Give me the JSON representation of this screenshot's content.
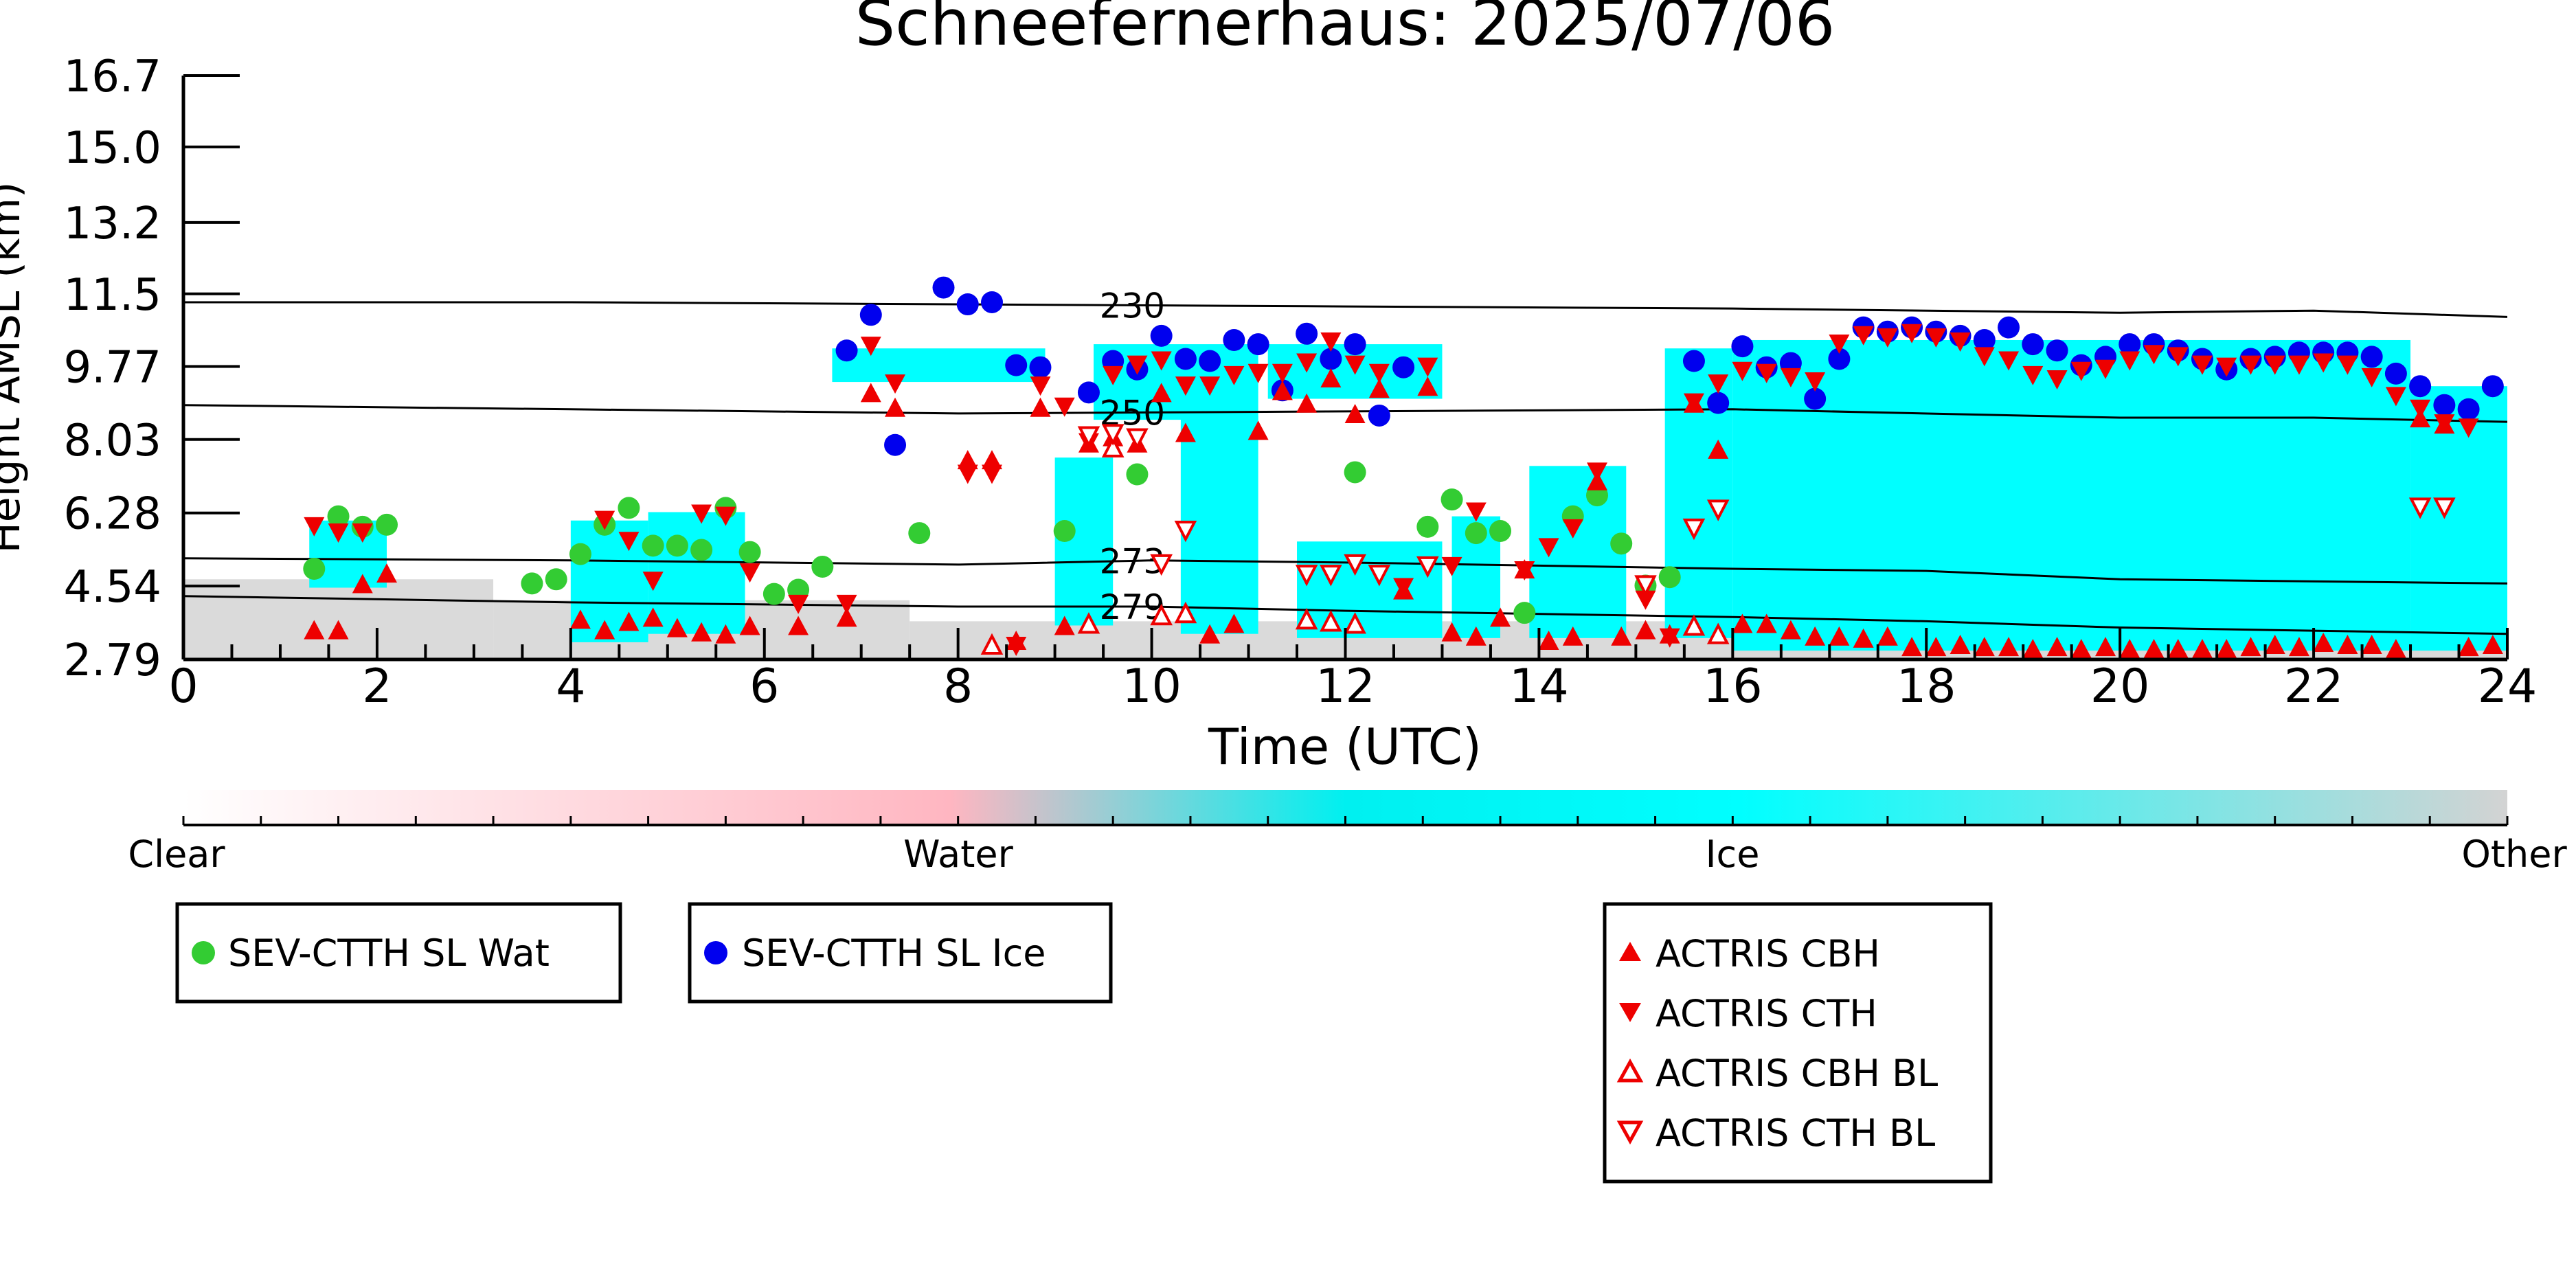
{
  "chart_data": {
    "type": "scatter",
    "title": "Schneefernerhaus: 2025/07/06",
    "xlabel": "Time (UTC)",
    "ylabel": "Height AMSL (km)",
    "xlim": [
      0,
      24
    ],
    "ylim": [
      2.79,
      16.7
    ],
    "x_ticks": [
      "0",
      "2",
      "4",
      "6",
      "8",
      "10",
      "12",
      "14",
      "16",
      "18",
      "20",
      "22",
      "24"
    ],
    "y_ticks": [
      "2.79",
      "4.54",
      "6.28",
      "8.03",
      "9.77",
      "11.5",
      "13.2",
      "15.0",
      "16.7"
    ],
    "colorbar": {
      "labels": [
        "Clear",
        "Water",
        "Ice",
        "Other"
      ],
      "colors": [
        "#ffffff",
        "#ffb6c1",
        "#00ffff",
        "#d3d3d3"
      ]
    },
    "colors": {
      "wat": "#33cc33",
      "ice": "#0000ee",
      "actris": "#ee0000",
      "cloud_ice": "#00ffff",
      "cloud_other": "#d3d3d3",
      "cloud_water": "#ffb6c1"
    },
    "isotherms": [
      {
        "label": "230",
        "x": [
          0,
          4,
          8,
          12,
          16,
          20,
          22,
          24
        ],
        "y": [
          11.3,
          11.3,
          11.25,
          11.2,
          11.15,
          11.05,
          11.1,
          10.95
        ]
      },
      {
        "label": "250",
        "x": [
          0,
          4,
          8,
          12,
          16,
          20,
          22,
          24
        ],
        "y": [
          8.85,
          8.75,
          8.65,
          8.7,
          8.75,
          8.55,
          8.55,
          8.45
        ]
      },
      {
        "label": "273",
        "x": [
          0,
          4,
          8,
          10,
          12,
          16,
          18,
          20,
          24
        ],
        "y": [
          5.2,
          5.15,
          5.05,
          5.15,
          5.1,
          4.95,
          4.9,
          4.7,
          4.6
        ]
      },
      {
        "label": "279",
        "x": [
          0,
          4,
          8,
          10,
          12,
          16,
          18,
          20,
          24
        ],
        "y": [
          4.3,
          4.15,
          4.05,
          4.05,
          3.95,
          3.8,
          3.7,
          3.55,
          3.4
        ]
      }
    ],
    "cloud_regions": [
      {
        "kind": "other",
        "x0": 0.0,
        "x1": 3.2,
        "y0": 2.79,
        "y1": 4.7
      },
      {
        "kind": "other",
        "x0": 3.2,
        "x1": 7.5,
        "y0": 2.79,
        "y1": 4.2
      },
      {
        "kind": "other",
        "x0": 7.5,
        "x1": 24.0,
        "y0": 2.79,
        "y1": 3.7
      },
      {
        "kind": "ice",
        "x0": 1.3,
        "x1": 2.1,
        "y0": 4.5,
        "y1": 6.1
      },
      {
        "kind": "ice",
        "x0": 4.0,
        "x1": 4.8,
        "y0": 3.2,
        "y1": 6.1
      },
      {
        "kind": "ice",
        "x0": 4.8,
        "x1": 5.8,
        "y0": 3.4,
        "y1": 6.3
      },
      {
        "kind": "ice",
        "x0": 6.7,
        "x1": 8.9,
        "y0": 9.4,
        "y1": 10.2
      },
      {
        "kind": "ice",
        "x0": 9.0,
        "x1": 9.6,
        "y0": 3.6,
        "y1": 7.6
      },
      {
        "kind": "ice",
        "x0": 9.4,
        "x1": 11.1,
        "y0": 8.5,
        "y1": 10.3
      },
      {
        "kind": "ice",
        "x0": 10.3,
        "x1": 11.1,
        "y0": 3.4,
        "y1": 8.6
      },
      {
        "kind": "ice",
        "x0": 11.2,
        "x1": 13.0,
        "y0": 9.0,
        "y1": 10.3
      },
      {
        "kind": "ice",
        "x0": 11.5,
        "x1": 13.0,
        "y0": 3.3,
        "y1": 5.6
      },
      {
        "kind": "ice",
        "x0": 13.1,
        "x1": 13.6,
        "y0": 3.3,
        "y1": 6.2
      },
      {
        "kind": "ice",
        "x0": 13.9,
        "x1": 14.9,
        "y0": 3.3,
        "y1": 7.4
      },
      {
        "kind": "ice",
        "x0": 15.3,
        "x1": 16.0,
        "y0": 3.3,
        "y1": 10.2
      },
      {
        "kind": "ice",
        "x0": 16.0,
        "x1": 23.0,
        "y0": 3.0,
        "y1": 10.4
      },
      {
        "kind": "ice",
        "x0": 23.0,
        "x1": 24.0,
        "y0": 3.0,
        "y1": 9.3
      }
    ],
    "series": [
      {
        "name": "SEV-CTTH SL Wat",
        "marker": "circle-filled",
        "x": [
          1.35,
          1.6,
          1.85,
          2.1,
          3.6,
          3.85,
          4.1,
          4.35,
          4.6,
          4.85,
          5.1,
          5.35,
          5.6,
          5.85,
          6.1,
          6.35,
          6.6,
          7.6,
          9.1,
          9.85,
          12.1,
          12.85,
          13.1,
          13.35,
          13.6,
          13.85,
          14.35,
          14.6,
          14.85,
          15.1,
          15.35
        ],
        "y": [
          4.95,
          6.2,
          5.95,
          6.0,
          4.6,
          4.7,
          5.3,
          6.0,
          6.4,
          5.5,
          5.5,
          5.4,
          6.4,
          5.35,
          4.35,
          4.45,
          5.0,
          5.8,
          5.85,
          7.2,
          7.25,
          5.95,
          6.6,
          5.8,
          5.85,
          3.9,
          6.2,
          6.7,
          5.55,
          4.55,
          4.75
        ]
      },
      {
        "name": "SEV-CTTH SL Ice",
        "marker": "circle-filled",
        "x": [
          6.85,
          7.1,
          7.35,
          7.85,
          8.1,
          8.35,
          8.6,
          8.85,
          9.35,
          9.6,
          9.85,
          10.1,
          10.35,
          10.6,
          10.85,
          11.1,
          11.35,
          11.6,
          11.85,
          12.1,
          12.35,
          12.6,
          15.6,
          15.85,
          16.1,
          16.35,
          16.6,
          16.85,
          17.1,
          17.35,
          17.6,
          17.85,
          18.1,
          18.35,
          18.6,
          18.85,
          19.1,
          19.35,
          19.6,
          19.85,
          20.1,
          20.35,
          20.6,
          20.85,
          21.1,
          21.35,
          21.6,
          21.85,
          22.1,
          22.35,
          22.6,
          22.85,
          23.1,
          23.35,
          23.6,
          23.85
        ],
        "y": [
          10.15,
          11.0,
          7.9,
          11.65,
          11.25,
          11.3,
          9.8,
          9.75,
          9.15,
          9.9,
          9.7,
          10.5,
          9.95,
          9.9,
          10.4,
          10.3,
          9.2,
          10.55,
          9.95,
          10.3,
          8.6,
          9.75,
          9.9,
          8.9,
          10.25,
          9.75,
          9.85,
          9.0,
          9.95,
          10.7,
          10.6,
          10.7,
          10.6,
          10.5,
          10.4,
          10.7,
          10.3,
          10.15,
          9.8,
          10.0,
          10.3,
          10.3,
          10.15,
          9.95,
          9.7,
          9.95,
          10.0,
          10.1,
          10.1,
          10.1,
          10.0,
          9.6,
          9.3,
          8.85,
          8.75,
          9.3
        ]
      },
      {
        "name": "ACTRIS CBH",
        "marker": "triangle-up-filled",
        "x": [
          1.35,
          1.6,
          1.85,
          2.1,
          4.1,
          4.35,
          4.6,
          4.85,
          5.1,
          5.35,
          5.6,
          5.85,
          6.35,
          6.85,
          7.1,
          7.35,
          8.1,
          8.35,
          8.6,
          8.85,
          9.1,
          9.35,
          9.6,
          9.85,
          10.1,
          10.35,
          10.6,
          10.85,
          11.1,
          11.35,
          11.6,
          11.85,
          12.1,
          12.35,
          12.6,
          12.85,
          13.1,
          13.35,
          13.6,
          13.85,
          14.1,
          14.35,
          14.6,
          14.85,
          15.1,
          15.35,
          15.6,
          15.85,
          16.1,
          16.35,
          16.6,
          16.85,
          17.1,
          17.35,
          17.6,
          17.85,
          18.1,
          18.35,
          18.6,
          18.85,
          19.1,
          19.35,
          19.6,
          19.85,
          20.1,
          20.35,
          20.6,
          20.85,
          21.1,
          21.35,
          21.6,
          21.85,
          22.1,
          22.35,
          22.6,
          22.85,
          23.1,
          23.35,
          23.6,
          23.85
        ],
        "y": [
          3.45,
          3.45,
          4.55,
          4.8,
          3.7,
          3.45,
          3.65,
          3.75,
          3.5,
          3.4,
          3.35,
          3.55,
          3.55,
          3.75,
          9.1,
          8.75,
          7.5,
          7.5,
          3.2,
          8.75,
          3.55,
          7.9,
          8.05,
          7.9,
          9.1,
          8.15,
          3.35,
          3.6,
          8.2,
          9.15,
          8.85,
          9.45,
          8.6,
          9.2,
          4.4,
          9.25,
          3.4,
          3.3,
          3.75,
          4.9,
          3.2,
          3.3,
          7.0,
          3.3,
          3.45,
          3.35,
          8.85,
          7.75,
          3.6,
          3.6,
          3.45,
          3.3,
          3.3,
          3.25,
          3.3,
          3.05,
          3.05,
          3.1,
          3.05,
          3.05,
          3.0,
          3.05,
          3.0,
          3.05,
          3.0,
          3.0,
          3.0,
          3.0,
          3.0,
          3.05,
          3.1,
          3.05,
          3.15,
          3.1,
          3.1,
          3.0,
          8.5,
          8.35,
          3.05,
          3.1
        ]
      },
      {
        "name": "ACTRIS CTH",
        "marker": "triangle-down-filled",
        "x": [
          1.35,
          1.6,
          1.85,
          4.35,
          4.6,
          4.85,
          5.35,
          5.6,
          5.85,
          6.35,
          6.85,
          7.1,
          7.35,
          8.1,
          8.35,
          8.6,
          8.85,
          9.1,
          9.35,
          9.6,
          9.85,
          10.1,
          10.35,
          10.6,
          10.85,
          11.1,
          11.35,
          11.6,
          11.85,
          12.1,
          12.35,
          12.6,
          12.85,
          13.1,
          13.35,
          13.85,
          14.1,
          14.35,
          14.6,
          15.1,
          15.35,
          15.6,
          15.85,
          16.1,
          16.35,
          16.6,
          16.85,
          17.1,
          17.35,
          17.6,
          17.85,
          18.1,
          18.35,
          18.6,
          18.85,
          19.1,
          19.35,
          19.6,
          19.85,
          20.1,
          20.35,
          20.6,
          20.85,
          21.1,
          21.35,
          21.6,
          21.85,
          22.1,
          22.35,
          22.6,
          22.85,
          23.1,
          23.35,
          23.6
        ],
        "y": [
          6.0,
          5.85,
          5.85,
          6.15,
          5.65,
          4.7,
          6.3,
          6.25,
          4.9,
          4.15,
          4.15,
          10.3,
          9.4,
          7.25,
          7.25,
          3.15,
          9.35,
          8.85,
          8.0,
          9.6,
          9.85,
          9.95,
          9.35,
          9.35,
          9.6,
          9.65,
          9.65,
          9.9,
          10.4,
          9.85,
          9.65,
          4.55,
          9.8,
          5.05,
          6.35,
          4.95,
          5.5,
          5.95,
          7.3,
          4.25,
          3.35,
          8.95,
          9.4,
          9.7,
          9.65,
          9.55,
          9.45,
          10.35,
          10.55,
          10.5,
          10.6,
          10.5,
          10.4,
          10.05,
          9.95,
          9.6,
          9.5,
          9.7,
          9.75,
          9.95,
          10.1,
          10.05,
          9.85,
          9.8,
          9.85,
          9.85,
          9.85,
          9.9,
          9.85,
          9.55,
          9.1,
          8.8,
          8.45,
          8.35
        ]
      },
      {
        "name": "ACTRIS CBH BL",
        "marker": "triangle-up-open",
        "x": [
          8.35,
          9.35,
          9.6,
          10.1,
          10.35,
          11.6,
          11.85,
          12.1,
          15.6,
          15.85
        ],
        "y": [
          3.1,
          3.6,
          7.8,
          3.8,
          3.85,
          3.7,
          3.65,
          3.6,
          3.55,
          3.35
        ]
      },
      {
        "name": "ACTRIS CTH BL",
        "marker": "triangle-down-open",
        "x": [
          9.35,
          9.6,
          9.85,
          10.1,
          10.35,
          11.6,
          11.85,
          12.1,
          12.35,
          12.85,
          15.1,
          15.6,
          15.85,
          23.1,
          23.35
        ],
        "y": [
          8.15,
          8.2,
          8.1,
          5.1,
          5.9,
          4.85,
          4.85,
          5.1,
          4.85,
          5.05,
          4.6,
          5.95,
          6.4,
          6.45,
          6.45
        ]
      }
    ]
  }
}
